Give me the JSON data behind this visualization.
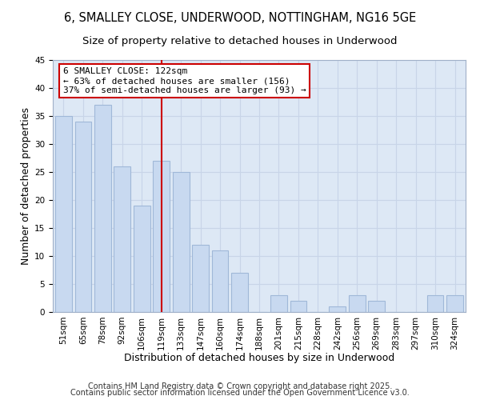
{
  "title": "6, SMALLEY CLOSE, UNDERWOOD, NOTTINGHAM, NG16 5GE",
  "subtitle": "Size of property relative to detached houses in Underwood",
  "xlabel": "Distribution of detached houses by size in Underwood",
  "ylabel": "Number of detached properties",
  "categories": [
    "51sqm",
    "65sqm",
    "78sqm",
    "92sqm",
    "106sqm",
    "119sqm",
    "133sqm",
    "147sqm",
    "160sqm",
    "174sqm",
    "188sqm",
    "201sqm",
    "215sqm",
    "228sqm",
    "242sqm",
    "256sqm",
    "269sqm",
    "283sqm",
    "297sqm",
    "310sqm",
    "324sqm"
  ],
  "values": [
    35,
    34,
    37,
    26,
    19,
    27,
    25,
    12,
    11,
    7,
    0,
    3,
    2,
    0,
    1,
    3,
    2,
    0,
    0,
    3,
    3
  ],
  "bar_color": "#c8d9f0",
  "bar_edge_color": "#a0b8d8",
  "vline_x_index": 5,
  "vline_color": "#cc0000",
  "annotation_title": "6 SMALLEY CLOSE: 122sqm",
  "annotation_line1": "← 63% of detached houses are smaller (156)",
  "annotation_line2": "37% of semi-detached houses are larger (93) →",
  "annotation_box_color": "#ffffff",
  "annotation_box_edge": "#cc0000",
  "ylim": [
    0,
    45
  ],
  "yticks": [
    0,
    5,
    10,
    15,
    20,
    25,
    30,
    35,
    40,
    45
  ],
  "footer1": "Contains HM Land Registry data © Crown copyright and database right 2025.",
  "footer2": "Contains public sector information licensed under the Open Government Licence v3.0.",
  "title_fontsize": 10.5,
  "subtitle_fontsize": 9.5,
  "axis_label_fontsize": 9,
  "tick_fontsize": 7.5,
  "annotation_fontsize": 8,
  "footer_fontsize": 7,
  "background_color": "#ffffff",
  "grid_color": "#c8d4e8",
  "ax_bg_color": "#dde8f5"
}
